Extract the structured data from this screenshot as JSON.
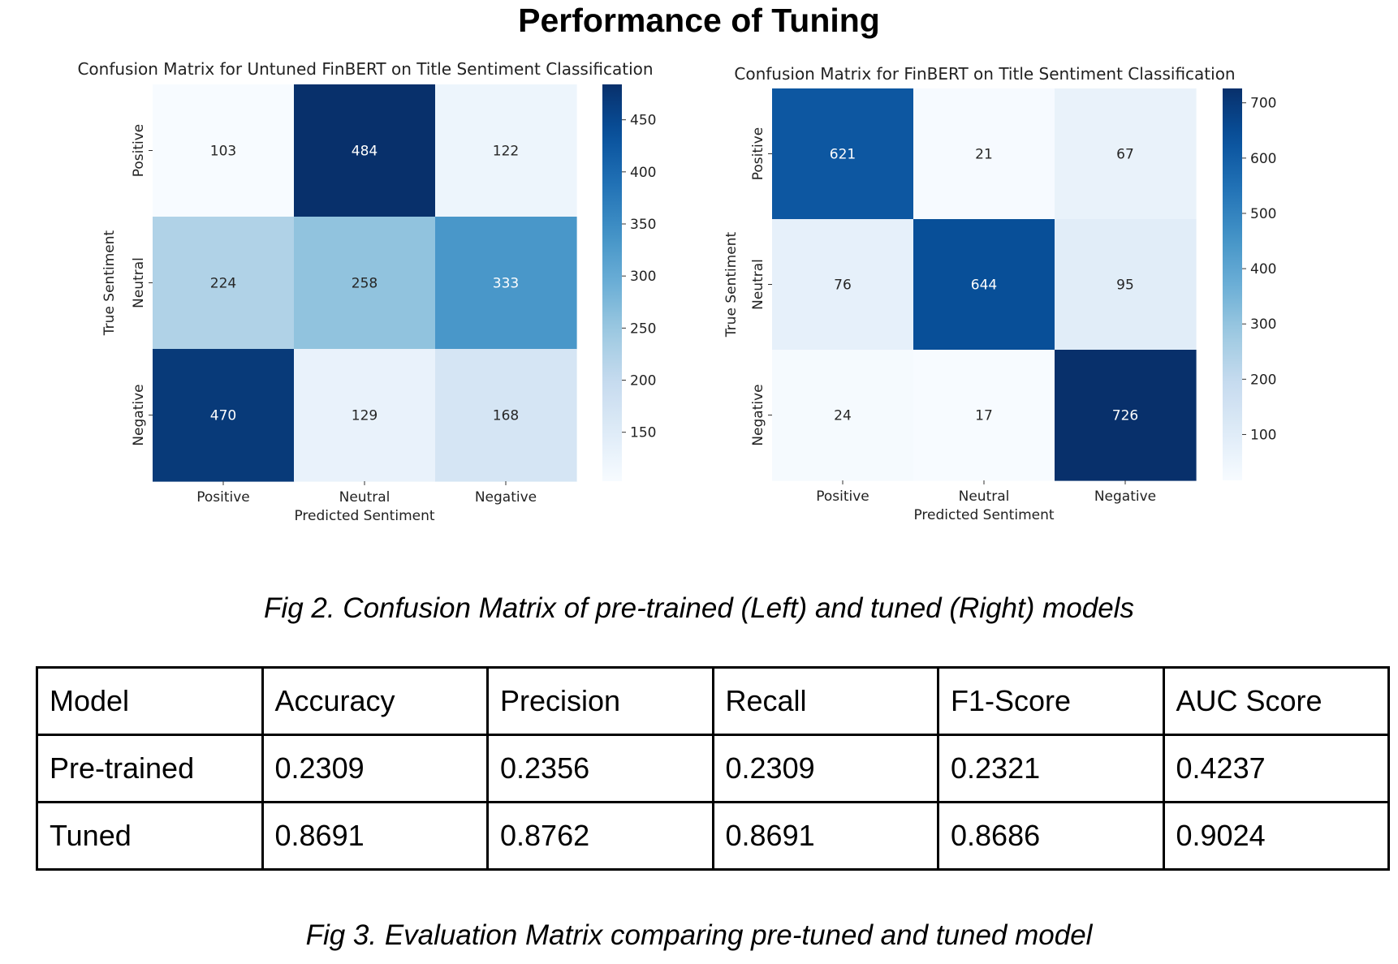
{
  "page_title": "Performance of Tuning",
  "fig2_caption": "Fig 2. Confusion Matrix of pre-trained (Left) and tuned (Right) models",
  "fig3_caption": "Fig 3. Evaluation Matrix comparing pre-tuned and tuned model",
  "chart_data": [
    {
      "type": "heatmap",
      "title": "Confusion Matrix for Untuned FinBERT on Title Sentiment Classification",
      "xlabel": "Predicted Sentiment",
      "ylabel": "True Sentiment",
      "x_categories": [
        "Positive",
        "Neutral",
        "Negative"
      ],
      "y_categories": [
        "Positive",
        "Neutral",
        "Negative"
      ],
      "values": [
        [
          103,
          484,
          122
        ],
        [
          224,
          258,
          333
        ],
        [
          470,
          129,
          168
        ]
      ],
      "colormap": "Blues",
      "color_range": [
        103,
        484
      ],
      "colorbar_ticks": [
        150,
        200,
        250,
        300,
        350,
        400,
        450
      ]
    },
    {
      "type": "heatmap",
      "title": "Confusion Matrix for FinBERT on Title Sentiment Classification",
      "xlabel": "Predicted Sentiment",
      "ylabel": "True Sentiment",
      "x_categories": [
        "Positive",
        "Neutral",
        "Negative"
      ],
      "y_categories": [
        "Positive",
        "Neutral",
        "Negative"
      ],
      "values": [
        [
          621,
          21,
          67
        ],
        [
          76,
          644,
          95
        ],
        [
          24,
          17,
          726
        ]
      ],
      "colormap": "Blues",
      "color_range": [
        17,
        726
      ],
      "colorbar_ticks": [
        100,
        200,
        300,
        400,
        500,
        600,
        700
      ]
    }
  ],
  "table": {
    "headers": [
      "Model",
      "Accuracy",
      "Precision",
      "Recall",
      "F1-Score",
      "AUC Score"
    ],
    "rows": [
      [
        "Pre-trained",
        "0.2309",
        "0.2356",
        "0.2309",
        "0.2321",
        "0.4237"
      ],
      [
        "Tuned",
        "0.8691",
        "0.8762",
        "0.8691",
        "0.8686",
        "0.9024"
      ]
    ]
  }
}
